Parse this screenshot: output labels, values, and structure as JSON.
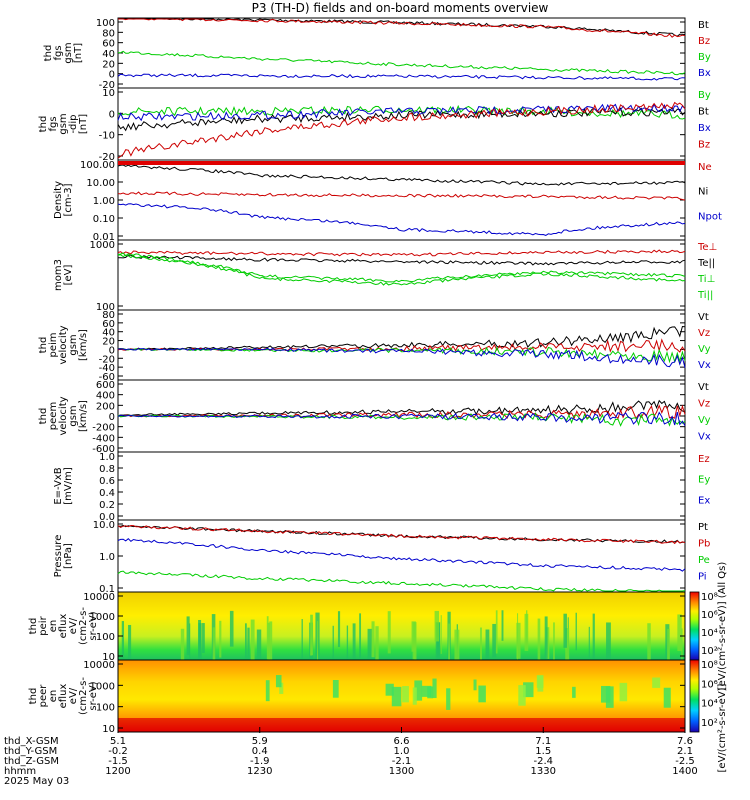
{
  "title": "P3 (TH-D) fields and on-board moments overview",
  "colors": {
    "black": "#000000",
    "red": "#cc0000",
    "green": "#00cc00",
    "blue": "#0000cc"
  },
  "panels": [
    {
      "ylabel": [
        "thd",
        "fgs",
        "gsm",
        "[nT]"
      ],
      "ticks": [
        "100",
        "80",
        "60",
        "40",
        "20",
        "0",
        "-20"
      ],
      "legend": [
        {
          "text": "Bt",
          "color": "black"
        },
        {
          "text": "Bz",
          "color": "red"
        },
        {
          "text": "By",
          "color": "green"
        },
        {
          "text": "Bx",
          "color": "blue"
        }
      ]
    },
    {
      "ylabel": [
        "thd",
        "fgs",
        "gsm",
        "-dip",
        "[nT]"
      ],
      "ticks": [
        "10",
        "0",
        "-10",
        "-20"
      ],
      "legend": [
        {
          "text": "By",
          "color": "green"
        },
        {
          "text": "Bt",
          "color": "black"
        },
        {
          "text": "Bx",
          "color": "blue"
        },
        {
          "text": "Bz",
          "color": "red"
        }
      ]
    },
    {
      "ylabel": [
        "Density",
        "[cm-3]"
      ],
      "ticks": [
        "100.00",
        "10.00",
        "1.00",
        "0.10",
        "0.01"
      ],
      "legend": [
        {
          "text": "Ne",
          "color": "red"
        },
        {
          "text": "Ni",
          "color": "black"
        },
        {
          "text": "Npot",
          "color": "blue"
        }
      ]
    },
    {
      "ylabel": [
        "mom3",
        "[eV]"
      ],
      "ticks": [
        "1000",
        "100"
      ],
      "legend": [
        {
          "text": "Te⊥",
          "color": "red"
        },
        {
          "text": "Te||",
          "color": "black"
        },
        {
          "text": "Ti⊥",
          "color": "green"
        },
        {
          "text": "Ti||",
          "color": "green"
        }
      ]
    },
    {
      "ylabel": [
        "thd",
        "peim",
        "velocity",
        "gsm",
        "[km/s]"
      ],
      "ticks": [
        "80",
        "60",
        "40",
        "20",
        "0",
        "-20",
        "-40",
        "-60"
      ],
      "legend": [
        {
          "text": "Vt",
          "color": "black"
        },
        {
          "text": "Vz",
          "color": "red"
        },
        {
          "text": "Vy",
          "color": "green"
        },
        {
          "text": "Vx",
          "color": "blue"
        }
      ]
    },
    {
      "ylabel": [
        "thd",
        "peem",
        "velocity",
        "gsm",
        "[km/s]"
      ],
      "ticks": [
        "600",
        "400",
        "200",
        "0",
        "-200",
        "-400",
        "-600"
      ],
      "legend": [
        {
          "text": "Vt",
          "color": "black"
        },
        {
          "text": "Vz",
          "color": "red"
        },
        {
          "text": "Vy",
          "color": "green"
        },
        {
          "text": "Vx",
          "color": "blue"
        }
      ]
    },
    {
      "ylabel": [
        "E=-VxB",
        "[mV/m]"
      ],
      "ticks": [
        "1.0",
        "0.8",
        "0.6",
        "0.4",
        "0.2",
        "0.0"
      ],
      "legend": [
        {
          "text": "Ez",
          "color": "red"
        },
        {
          "text": "Ey",
          "color": "green"
        },
        {
          "text": "Ex",
          "color": "blue"
        }
      ]
    },
    {
      "ylabel": [
        "Pressure",
        "[nPa]"
      ],
      "ticks": [
        "10.0",
        "1.0",
        "0.1"
      ],
      "legend": [
        {
          "text": "Pt",
          "color": "black"
        },
        {
          "text": "Pb",
          "color": "red"
        },
        {
          "text": "Pe",
          "color": "green"
        },
        {
          "text": "Pi",
          "color": "blue"
        }
      ]
    },
    {
      "ylabel": [
        "thd",
        "peir",
        "en",
        "eflux",
        "eV/",
        "(cm2-s-",
        "sr-eV)"
      ],
      "ticks": [
        "10000",
        "1000",
        "100",
        "10"
      ],
      "legend": []
    },
    {
      "ylabel": [
        "thd",
        "peer",
        "en",
        "eflux",
        "eV/",
        "(cm2-s-",
        "sr-eV)"
      ],
      "ticks": [
        "10000",
        "1000",
        "100",
        "10"
      ],
      "legend": []
    }
  ],
  "colorbar": {
    "ticks": [
      "10⁸",
      "10⁶",
      "10⁴",
      "10²"
    ],
    "label_ions": "[eV/(cm²-s-sr-eV)] (All Qs)",
    "label_elec": "[eV/(cm²-s-sr-eV)]"
  },
  "xaxis": {
    "row_labels": [
      "thd_X-GSM",
      "thd_Y-GSM",
      "thd_Z-GSM",
      "hhmm",
      "2025 May 03"
    ],
    "columns": [
      {
        "values": [
          "5.1",
          "-0.2",
          "-1.5",
          "1200"
        ]
      },
      {
        "values": [
          "5.9",
          "0.4",
          "-1.9",
          "1230"
        ]
      },
      {
        "values": [
          "6.6",
          "1.0",
          "-2.1",
          "1300"
        ]
      },
      {
        "values": [
          "7.1",
          "1.5",
          "-2.4",
          "1330"
        ]
      },
      {
        "values": [
          "7.6",
          "2.1",
          "-2.5",
          "1400"
        ]
      }
    ]
  },
  "chart_data": {
    "type": "line",
    "title": "P3 (TH-D) fields and on-board moments overview",
    "x": [
      "1200",
      "1230",
      "1300",
      "1330",
      "1400"
    ],
    "panels": [
      {
        "ylim": [
          -20,
          100
        ],
        "series": [
          {
            "name": "Bt",
            "values": [
              101,
              97,
              92,
              86,
              70
            ]
          },
          {
            "name": "Bz",
            "values": [
              100,
              96,
              91,
              85,
              68
            ]
          },
          {
            "name": "By",
            "values": [
              42,
              30,
              20,
              12,
              5
            ]
          },
          {
            "name": "Bx",
            "values": [
              2,
              1,
              0,
              -2,
              -5
            ]
          }
        ]
      },
      {
        "ylim": [
          -25,
          12
        ],
        "series": [
          {
            "name": "By",
            "values": [
              0,
              0,
              1,
              0,
              -2
            ]
          },
          {
            "name": "Bt",
            "values": [
              -8,
              -4,
              -2,
              -1,
              0
            ]
          },
          {
            "name": "Bx",
            "values": [
              -3,
              -2,
              0,
              1,
              2
            ]
          },
          {
            "name": "Bz",
            "values": [
              -22,
              -10,
              -3,
              0,
              3
            ]
          }
        ]
      },
      {
        "scale": "log",
        "ylim": [
          0.005,
          200
        ],
        "series": [
          {
            "name": "Ne",
            "values": [
              2.5,
              2.0,
              1.8,
              1.6,
              1.2
            ]
          },
          {
            "name": "Ni",
            "values": [
              90,
              25,
              15,
              8,
              10
            ]
          },
          {
            "name": "Npot",
            "values": [
              0.6,
              0.1,
              0.02,
              0.01,
              0.05
            ]
          }
        ]
      },
      {
        "scale": "log",
        "ylim": [
          60,
          3000
        ],
        "series": [
          {
            "name": "Te⊥",
            "values": [
              1500,
              1400,
              1300,
              1500,
              1600
            ]
          },
          {
            "name": "Te||",
            "values": [
              1200,
              1000,
              900,
              800,
              900
            ]
          },
          {
            "name": "Ti⊥",
            "values": [
              1400,
              400,
              300,
              500,
              400
            ]
          },
          {
            "name": "Ti||",
            "values": [
              1300,
              350,
              250,
              450,
              300
            ]
          }
        ]
      },
      {
        "ylim": [
          -70,
          90
        ],
        "series": [
          {
            "name": "Vt",
            "values": [
              0,
              5,
              10,
              15,
              40
            ]
          },
          {
            "name": "Vz",
            "values": [
              0,
              0,
              2,
              5,
              10
            ]
          },
          {
            "name": "Vy",
            "values": [
              0,
              -2,
              -3,
              -5,
              -15
            ]
          },
          {
            "name": "Vx",
            "values": [
              0,
              0,
              -5,
              -10,
              -30
            ]
          }
        ]
      },
      {
        "ylim": [
          -650,
          650
        ],
        "series": [
          {
            "name": "Vt",
            "values": [
              20,
              50,
              80,
              100,
              200
            ]
          },
          {
            "name": "Vz",
            "values": [
              0,
              10,
              20,
              30,
              80
            ]
          },
          {
            "name": "Vy",
            "values": [
              0,
              -10,
              -20,
              -30,
              -100
            ]
          },
          {
            "name": "Vx",
            "values": [
              0,
              -5,
              -10,
              -20,
              -50
            ]
          }
        ]
      },
      {
        "ylim": [
          0,
          1
        ],
        "series": []
      },
      {
        "scale": "log",
        "ylim": [
          0.04,
          15
        ],
        "series": [
          {
            "name": "Pt",
            "values": [
              9,
              6,
              4,
              3,
              2.5
            ]
          },
          {
            "name": "Pb",
            "values": [
              9,
              6,
              4,
              3,
              2.4
            ]
          },
          {
            "name": "Pe",
            "values": [
              0.2,
              0.12,
              0.08,
              0.05,
              0.04
            ]
          },
          {
            "name": "Pi",
            "values": [
              3,
              1.2,
              0.6,
              0.35,
              0.25
            ]
          }
        ]
      }
    ]
  }
}
